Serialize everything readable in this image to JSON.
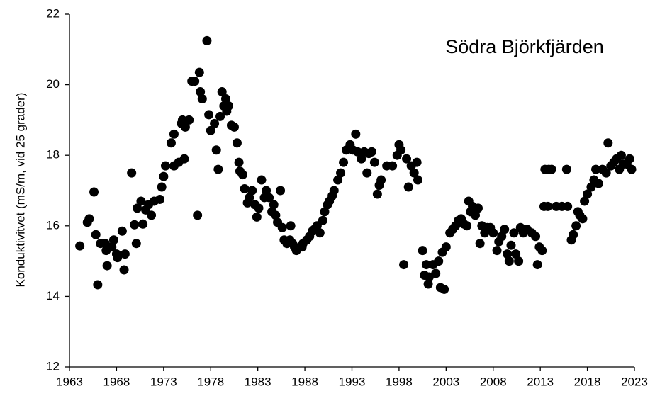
{
  "chart_data": {
    "type": "scatter",
    "title": "Södra Björkfjärden",
    "y_label": "Konduktivitvet (mS/m, vid 25 grader)",
    "color": "#000000",
    "xlim": [
      1963,
      2023
    ],
    "xticks": [
      1963,
      1968,
      1973,
      1978,
      1983,
      1988,
      1993,
      1998,
      2003,
      2008,
      2013,
      2018,
      2023
    ],
    "ylim": [
      12,
      22
    ],
    "yticks": [
      12,
      14,
      16,
      18,
      20,
      22
    ],
    "grid": false,
    "x": [
      1964.1,
      1964.9,
      1965.1,
      1965.6,
      1965.8,
      1966.0,
      1966.3,
      1966.8,
      1966.9,
      1967.0,
      1967.5,
      1967.7,
      1968.0,
      1968.1,
      1968.6,
      1968.8,
      1968.9,
      1969.6,
      1969.9,
      1970.1,
      1970.2,
      1970.6,
      1970.8,
      1971.1,
      1971.4,
      1971.7,
      1972.0,
      1972.6,
      1972.8,
      1973.0,
      1973.2,
      1973.8,
      1974.1,
      1974.1,
      1974.6,
      1974.9,
      1975.0,
      1975.2,
      1975.3,
      1975.7,
      1976.0,
      1976.3,
      1976.6,
      1976.8,
      1976.9,
      1977.1,
      1977.6,
      1977.8,
      1978.0,
      1978.4,
      1978.6,
      1978.8,
      1979.0,
      1979.2,
      1979.4,
      1979.6,
      1979.7,
      1979.9,
      1980.2,
      1980.5,
      1980.8,
      1981.0,
      1981.1,
      1981.4,
      1981.6,
      1981.9,
      1982.1,
      1982.4,
      1982.7,
      1982.9,
      1983.1,
      1983.4,
      1983.7,
      1983.9,
      1984.2,
      1984.5,
      1984.7,
      1984.9,
      1985.1,
      1985.4,
      1985.6,
      1985.8,
      1986.1,
      1986.4,
      1986.5,
      1986.7,
      1986.9,
      1987.1,
      1987.5,
      1987.7,
      1987.8,
      1988.2,
      1988.5,
      1988.8,
      1989.0,
      1989.3,
      1989.6,
      1989.9,
      1990.1,
      1990.4,
      1990.6,
      1990.9,
      1991.1,
      1991.5,
      1991.8,
      1992.1,
      1992.4,
      1992.8,
      1993.1,
      1993.4,
      1993.6,
      1994.0,
      1994.3,
      1994.6,
      1994.8,
      1995.1,
      1995.4,
      1995.7,
      1995.9,
      1996.1,
      1996.7,
      1997.3,
      1997.8,
      1998.0,
      1998.2,
      1998.5,
      1998.8,
      1999.0,
      1999.3,
      1999.6,
      1999.9,
      2000.0,
      2000.5,
      2000.7,
      2000.9,
      2001.1,
      2001.2,
      2001.6,
      2001.9,
      2002.2,
      2002.4,
      2002.6,
      2002.8,
      2003.0,
      2003.4,
      2003.7,
      2004.0,
      2004.3,
      2004.6,
      2004.9,
      2005.2,
      2005.4,
      2005.6,
      2005.8,
      2006.1,
      2006.4,
      2006.6,
      2006.8,
      2007.1,
      2007.4,
      2007.7,
      2008.0,
      2008.4,
      2008.6,
      2008.9,
      2009.2,
      2009.5,
      2009.7,
      2009.9,
      2010.2,
      2010.4,
      2010.7,
      2010.9,
      2011.2,
      2011.4,
      2011.6,
      2012.1,
      2012.5,
      2012.7,
      2012.9,
      2013.2,
      2013.4,
      2013.5,
      2013.8,
      2013.9,
      2014.2,
      2014.7,
      2015.3,
      2015.8,
      2015.9,
      2016.3,
      2016.5,
      2016.8,
      2017.0,
      2017.2,
      2017.5,
      2017.7,
      2018.0,
      2018.4,
      2018.7,
      2018.9,
      2019.2,
      2019.6,
      2020.0,
      2020.2,
      2020.5,
      2020.8,
      2021.1,
      2021.4,
      2021.6,
      2021.8,
      2022.2,
      2022.5,
      2022.7
    ],
    "values": [
      15.43,
      16.1,
      16.2,
      16.96,
      15.75,
      14.33,
      15.5,
      15.5,
      15.3,
      14.87,
      15.4,
      15.6,
      15.2,
      15.1,
      15.85,
      14.75,
      15.2,
      17.5,
      16.03,
      15.5,
      16.5,
      16.7,
      16.05,
      16.45,
      16.6,
      16.3,
      16.7,
      16.75,
      17.1,
      17.4,
      17.7,
      18.35,
      18.6,
      17.7,
      17.8,
      18.9,
      19.0,
      17.9,
      18.8,
      19.0,
      20.1,
      20.1,
      16.3,
      20.35,
      19.8,
      19.6,
      21.25,
      19.15,
      18.7,
      18.9,
      18.15,
      17.6,
      19.1,
      19.8,
      19.4,
      19.6,
      19.25,
      19.4,
      18.85,
      18.8,
      18.35,
      17.8,
      17.55,
      17.45,
      17.05,
      16.65,
      16.8,
      17.0,
      16.6,
      16.25,
      16.5,
      17.3,
      16.8,
      17.0,
      16.8,
      16.4,
      16.6,
      16.3,
      16.1,
      17.0,
      15.95,
      15.6,
      15.5,
      15.6,
      16.0,
      15.5,
      15.4,
      15.3,
      15.4,
      15.4,
      15.5,
      15.6,
      15.7,
      15.85,
      15.9,
      16.0,
      15.8,
      16.15,
      16.4,
      16.6,
      16.7,
      16.85,
      17.0,
      17.3,
      17.5,
      17.8,
      18.15,
      18.3,
      18.15,
      18.6,
      18.1,
      17.9,
      18.1,
      17.5,
      18.05,
      18.1,
      17.8,
      16.9,
      17.15,
      17.3,
      17.7,
      17.7,
      18.0,
      18.3,
      18.15,
      14.9,
      17.9,
      17.1,
      17.7,
      17.5,
      17.8,
      17.3,
      15.3,
      14.6,
      14.9,
      14.35,
      14.55,
      14.9,
      14.65,
      15.0,
      14.25,
      15.25,
      14.2,
      15.4,
      15.8,
      15.9,
      16.0,
      16.15,
      16.2,
      16.05,
      16.0,
      16.7,
      16.4,
      16.55,
      16.3,
      16.5,
      15.5,
      16.0,
      15.8,
      15.95,
      15.95,
      15.8,
      15.3,
      15.55,
      15.7,
      15.9,
      15.2,
      15.0,
      15.45,
      15.8,
      15.2,
      15.0,
      15.95,
      15.8,
      15.9,
      15.9,
      15.8,
      15.7,
      14.9,
      15.4,
      15.3,
      16.55,
      17.6,
      16.55,
      17.6,
      17.6,
      16.55,
      16.55,
      17.6,
      16.55,
      15.6,
      15.75,
      16.0,
      16.4,
      16.3,
      16.2,
      16.7,
      16.9,
      17.1,
      17.3,
      17.6,
      17.2,
      17.6,
      17.5,
      18.35,
      17.7,
      17.8,
      17.9,
      17.6,
      18.0,
      17.75,
      17.75,
      17.9,
      17.6
    ]
  }
}
